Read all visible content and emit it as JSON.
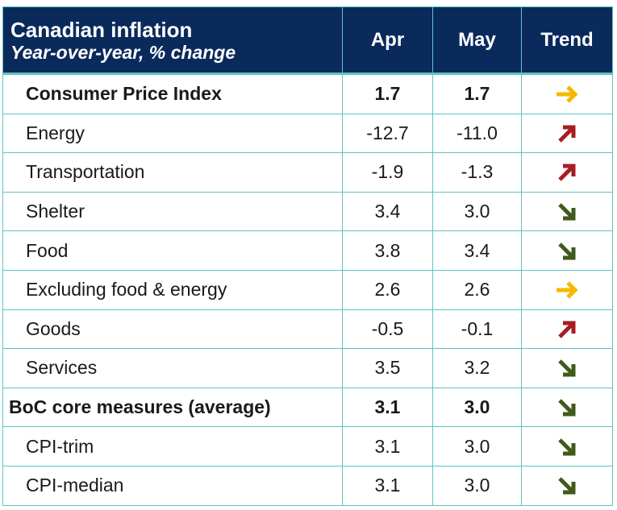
{
  "header": {
    "title": "Canadian inflation",
    "subtitle": "Year-over-year, % change",
    "col_apr": "Apr",
    "col_may": "May",
    "col_trend": "Trend"
  },
  "rows": [
    {
      "label": "Consumer Price Index",
      "apr": "1.7",
      "may": "1.7",
      "trend": "right-arrow-icon",
      "bold": true
    },
    {
      "label": "Energy",
      "apr": "-12.7",
      "may": "-11.0",
      "trend": "up-right-arrow-icon"
    },
    {
      "label": "Transportation",
      "apr": "-1.9",
      "may": "-1.3",
      "trend": "up-right-arrow-icon"
    },
    {
      "label": "Shelter",
      "apr": "3.4",
      "may": "3.0",
      "trend": "down-right-arrow-icon"
    },
    {
      "label": "Food",
      "apr": "3.8",
      "may": "3.4",
      "trend": "down-right-arrow-icon"
    },
    {
      "label": "Excluding food & energy",
      "apr": "2.6",
      "may": "2.6",
      "trend": "right-arrow-icon"
    },
    {
      "label": "Goods",
      "apr": "-0.5",
      "may": "-0.1",
      "trend": "up-right-arrow-icon"
    },
    {
      "label": "Services",
      "apr": "3.5",
      "may": "3.2",
      "trend": "down-right-arrow-icon"
    },
    {
      "label": "BoC core measures (average)",
      "apr": "3.1",
      "may": "3.0",
      "trend": "down-right-arrow-icon",
      "bold": true
    },
    {
      "label": "CPI-trim",
      "apr": "3.1",
      "may": "3.0",
      "trend": "down-right-arrow-icon"
    },
    {
      "label": "CPI-median",
      "apr": "3.1",
      "may": "3.0",
      "trend": "down-right-arrow-icon"
    }
  ],
  "colors": {
    "header_bg": "#0b2a5c",
    "border": "#5ec4c4",
    "arrow_flat": "#f5b800",
    "arrow_up": "#a51e22",
    "arrow_down": "#3f5a1a"
  }
}
